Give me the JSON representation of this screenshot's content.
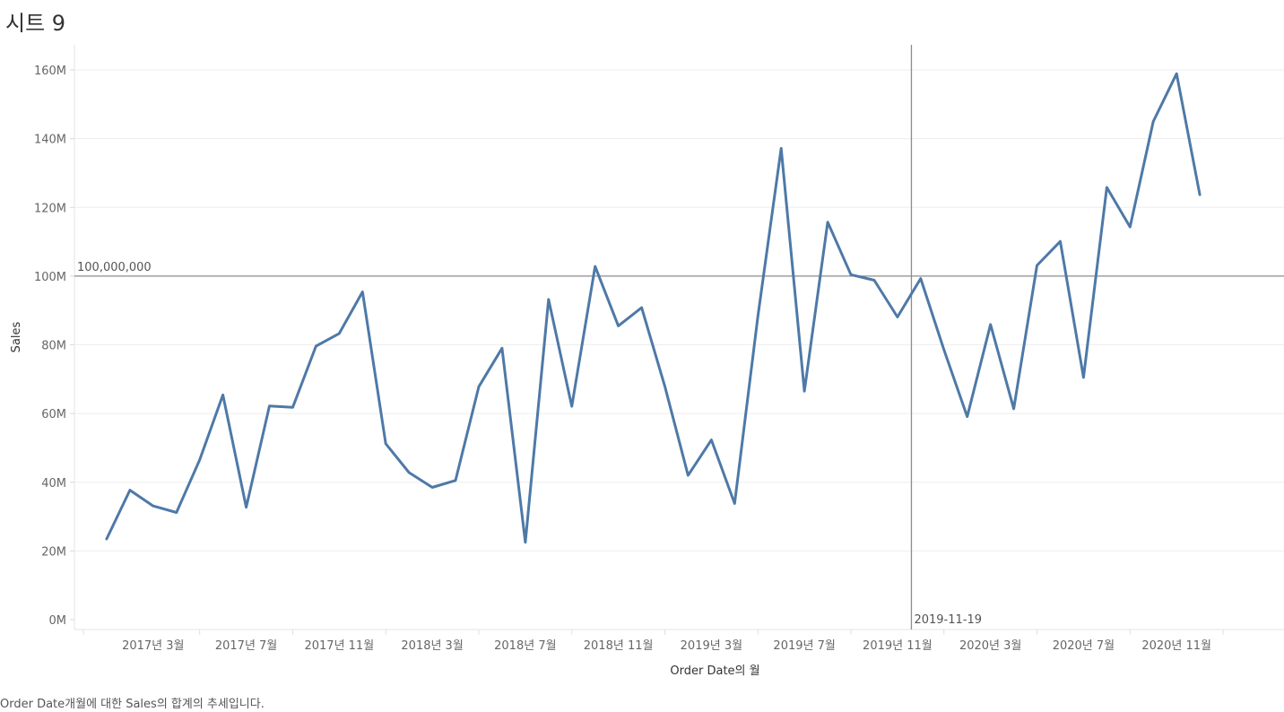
{
  "sheet": {
    "title": "시트 9",
    "caption": "Order Date개월에 대한 Sales의 합계의 추세입니다."
  },
  "colors": {
    "line": "#4e79a7",
    "gridline": "#eeeeee",
    "reference_line": "#8c8c8c",
    "axis_text": "#666666"
  },
  "chart_data": {
    "type": "line",
    "xlabel": "Order Date의 월",
    "ylabel": "Sales",
    "ylim": [
      0,
      160000000
    ],
    "y_ticks": [
      0,
      20000000,
      40000000,
      60000000,
      80000000,
      100000000,
      120000000,
      140000000,
      160000000
    ],
    "y_tick_labels": [
      "0M",
      "20M",
      "40M",
      "60M",
      "80M",
      "100M",
      "120M",
      "140M",
      "160M"
    ],
    "x_tick_labels": [
      "2017년 3월",
      "2017년 7월",
      "2017년 11월",
      "2018년 3월",
      "2018년 7월",
      "2018년 11월",
      "2019년 3월",
      "2019년 7월",
      "2019년 11월",
      "2020년 3월",
      "2020년 7월",
      "2020년 11월"
    ],
    "x_tick_dates": [
      "2017-03",
      "2017-07",
      "2017-11",
      "2018-03",
      "2018-07",
      "2018-11",
      "2019-03",
      "2019-07",
      "2019-11",
      "2020-03",
      "2020-07",
      "2020-11"
    ],
    "x_start": "2016-12",
    "x_end": "2021-02",
    "grid": true,
    "series": [
      {
        "x": [
          "2017-01",
          "2017-02",
          "2017-03",
          "2017-04",
          "2017-05",
          "2017-06",
          "2017-07",
          "2017-08",
          "2017-09",
          "2017-10",
          "2017-11",
          "2017-12",
          "2018-01",
          "2018-02",
          "2018-03",
          "2018-04",
          "2018-05",
          "2018-06",
          "2018-07",
          "2018-08",
          "2018-09",
          "2018-10",
          "2018-11",
          "2018-12",
          "2019-01",
          "2019-02",
          "2019-03",
          "2019-04",
          "2019-05",
          "2019-06",
          "2019-07",
          "2019-08",
          "2019-09",
          "2019-10",
          "2019-11",
          "2019-12",
          "2020-01",
          "2020-02",
          "2020-03",
          "2020-04",
          "2020-05",
          "2020-06",
          "2020-07",
          "2020-08",
          "2020-09",
          "2020-10",
          "2020-11",
          "2020-12"
        ],
        "values": [
          23500000,
          37700000,
          33100000,
          31200000,
          46500000,
          65400000,
          32700000,
          62200000,
          61800000,
          79600000,
          83300000,
          95400000,
          51200000,
          42800000,
          38500000,
          40500000,
          67800000,
          79000000,
          22500000,
          93200000,
          62100000,
          102800000,
          85500000,
          90800000,
          67900000,
          42000000,
          52300000,
          33800000,
          88400000,
          137200000,
          66500000,
          115700000,
          100400000,
          98800000,
          88100000,
          99300000,
          78500000,
          59100000,
          85900000,
          61400000,
          103100000,
          110100000,
          70500000,
          125800000,
          114300000,
          145000000,
          158900000,
          123700000
        ]
      }
    ],
    "reference_lines": [
      {
        "axis": "y",
        "value": 100000000,
        "label": "100,000,000"
      },
      {
        "axis": "x",
        "value": "2019-11-19",
        "label": "2019-11-19"
      }
    ]
  }
}
